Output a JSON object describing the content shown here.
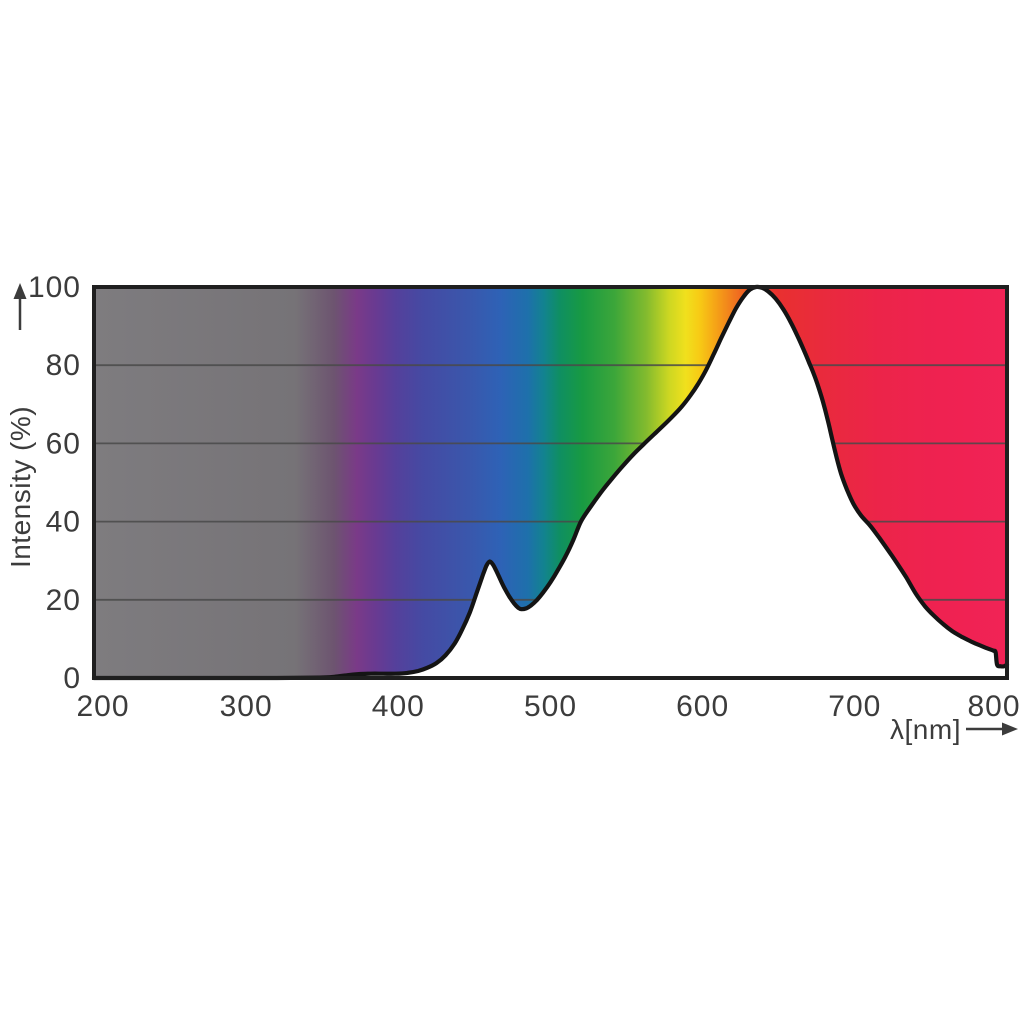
{
  "page": {
    "background_color": "#ffffff"
  },
  "chart_data": {
    "type": "area",
    "title": "",
    "xlabel": "λ[nm]",
    "ylabel": "Intensity (%)",
    "xlim": [
      200,
      800
    ],
    "ylim": [
      0,
      100
    ],
    "x_ticks": [
      200,
      300,
      400,
      500,
      600,
      700,
      800
    ],
    "y_ticks": [
      0,
      20,
      40,
      60,
      80,
      100
    ],
    "gridline_values": [
      20,
      40,
      60,
      80
    ],
    "grid": "horizontal gridlines only, visible over colored region",
    "legend": "none",
    "fill_style": "full-plot spectrum gradient as background; area below curve masked white; black curve outline",
    "series": [
      {
        "points_nm_pct": [
          [
            200,
            0
          ],
          [
            240,
            0
          ],
          [
            280,
            0
          ],
          [
            320,
            0
          ],
          [
            348,
            0.1
          ],
          [
            358,
            0.3
          ],
          [
            366,
            0.7
          ],
          [
            374,
            1.0
          ],
          [
            382,
            1.1
          ],
          [
            390,
            1.1
          ],
          [
            398,
            1.1
          ],
          [
            406,
            1.3
          ],
          [
            413,
            1.8
          ],
          [
            419,
            2.6
          ],
          [
            425,
            3.8
          ],
          [
            431,
            5.8
          ],
          [
            437,
            8.8
          ],
          [
            442,
            12.4
          ],
          [
            447,
            16.8
          ],
          [
            451,
            21.2
          ],
          [
            454,
            24.6
          ],
          [
            456,
            26.8
          ],
          [
            458,
            28.8
          ],
          [
            460,
            29.8
          ],
          [
            462,
            29.1
          ],
          [
            464,
            27.7
          ],
          [
            467,
            25.2
          ],
          [
            470,
            22.8
          ],
          [
            473,
            20.8
          ],
          [
            476,
            19.1
          ],
          [
            479,
            17.9
          ],
          [
            481,
            17.6
          ],
          [
            484,
            17.8
          ],
          [
            487,
            18.5
          ],
          [
            491,
            19.9
          ],
          [
            495,
            21.8
          ],
          [
            500,
            24.5
          ],
          [
            505,
            27.7
          ],
          [
            510,
            31.2
          ],
          [
            515,
            35.3
          ],
          [
            520,
            40.0
          ],
          [
            526,
            43.6
          ],
          [
            533,
            47.4
          ],
          [
            540,
            50.8
          ],
          [
            547,
            54.0
          ],
          [
            554,
            57.0
          ],
          [
            561,
            59.7
          ],
          [
            568,
            62.3
          ],
          [
            574,
            64.5
          ],
          [
            580,
            66.8
          ],
          [
            586,
            69.3
          ],
          [
            592,
            72.3
          ],
          [
            597,
            75.2
          ],
          [
            602,
            78.6
          ],
          [
            607,
            82.6
          ],
          [
            612,
            86.8
          ],
          [
            617,
            90.8
          ],
          [
            622,
            94.6
          ],
          [
            627,
            97.6
          ],
          [
            631,
            99.3
          ],
          [
            635,
            100
          ],
          [
            639,
            99.8
          ],
          [
            643,
            98.9
          ],
          [
            648,
            97.0
          ],
          [
            653,
            94.3
          ],
          [
            658,
            90.9
          ],
          [
            663,
            86.9
          ],
          [
            667,
            83.4
          ],
          [
            670,
            80.6
          ],
          [
            673,
            77.8
          ],
          [
            676,
            74.5
          ],
          [
            679,
            70.7
          ],
          [
            682,
            66.3
          ],
          [
            685,
            61.3
          ],
          [
            688,
            56.4
          ],
          [
            691,
            52.2
          ],
          [
            695,
            48.0
          ],
          [
            699,
            44.6
          ],
          [
            704,
            41.6
          ],
          [
            710,
            39.0
          ],
          [
            716,
            35.9
          ],
          [
            722,
            32.6
          ],
          [
            728,
            29.2
          ],
          [
            734,
            25.6
          ],
          [
            740,
            21.6
          ],
          [
            746,
            18.4
          ],
          [
            752,
            15.9
          ],
          [
            758,
            13.8
          ],
          [
            764,
            12.0
          ],
          [
            770,
            10.6
          ],
          [
            776,
            9.4
          ],
          [
            782,
            8.4
          ],
          [
            787,
            7.6
          ],
          [
            791,
            7.0
          ],
          [
            792.5,
            6.6
          ],
          [
            793.5,
            3.4
          ],
          [
            796,
            3.0
          ],
          [
            798,
            3.0
          ],
          [
            800,
            3.4
          ]
        ]
      }
    ],
    "spectrum_gradient_stops": [
      {
        "pos": 0.0,
        "color": "#7e7c7f"
      },
      {
        "pos": 22.0,
        "color": "#767377"
      },
      {
        "pos": 26.3,
        "color": "#6d5470"
      },
      {
        "pos": 28.8,
        "color": "#7a3a88"
      },
      {
        "pos": 30.8,
        "color": "#693a91"
      },
      {
        "pos": 33.0,
        "color": "#55409b"
      },
      {
        "pos": 36.0,
        "color": "#454aa3"
      },
      {
        "pos": 41.0,
        "color": "#3a57ac"
      },
      {
        "pos": 44.5,
        "color": "#2e62b6"
      },
      {
        "pos": 47.5,
        "color": "#1e70ab"
      },
      {
        "pos": 49.3,
        "color": "#12838f"
      },
      {
        "pos": 51.0,
        "color": "#0f8f62"
      },
      {
        "pos": 53.5,
        "color": "#189a42"
      },
      {
        "pos": 57.0,
        "color": "#3ca63a"
      },
      {
        "pos": 60.5,
        "color": "#83bb2e"
      },
      {
        "pos": 63.0,
        "color": "#cdd722"
      },
      {
        "pos": 64.8,
        "color": "#f0e01d"
      },
      {
        "pos": 66.3,
        "color": "#f7cb15"
      },
      {
        "pos": 68.2,
        "color": "#f5a117"
      },
      {
        "pos": 70.3,
        "color": "#f0731f"
      },
      {
        "pos": 72.5,
        "color": "#ec4326"
      },
      {
        "pos": 75.0,
        "color": "#e93030"
      },
      {
        "pos": 80.0,
        "color": "#e92a3d"
      },
      {
        "pos": 86.0,
        "color": "#ec2449"
      },
      {
        "pos": 93.0,
        "color": "#ef2251"
      },
      {
        "pos": 100.0,
        "color": "#f12356"
      }
    ],
    "colors": {
      "curve": "#141414",
      "frame": "#1f1f1f",
      "gridline": "#4a4a4a",
      "text": "#3c3c3c",
      "under_curve_fill": "#ffffff",
      "background": "#ffffff"
    }
  }
}
